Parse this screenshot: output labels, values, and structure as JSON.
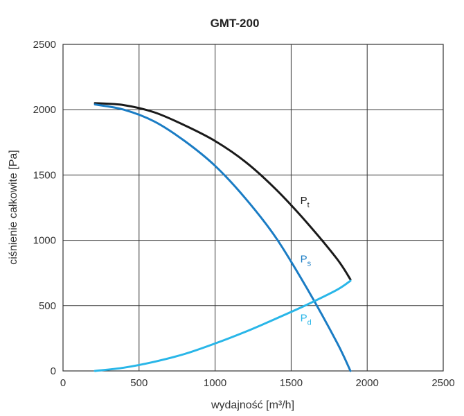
{
  "chart_data": {
    "type": "line",
    "title": "GMT-200",
    "xlabel": "wydajność [m³/h]",
    "ylabel": "ciśnienie całkowite [Pa]",
    "xlim": [
      0,
      2500
    ],
    "ylim": [
      0,
      2500
    ],
    "x_ticks": [
      0,
      500,
      1000,
      1500,
      2000,
      2500
    ],
    "y_ticks": [
      0,
      500,
      1000,
      1500,
      2000,
      2500
    ],
    "grid": true,
    "series": [
      {
        "name": "Pt",
        "label_main": "P",
        "label_sub": "t",
        "label_at": [
          1560,
          1280
        ],
        "color": "#1a1a1a",
        "x": [
          210,
          400,
          600,
          800,
          1000,
          1200,
          1400,
          1600,
          1800,
          1890
        ],
        "y": [
          2050,
          2035,
          1980,
          1880,
          1760,
          1600,
          1390,
          1140,
          860,
          700
        ]
      },
      {
        "name": "Ps",
        "label_main": "P",
        "label_sub": "s",
        "label_at": [
          1560,
          830
        ],
        "color": "#1a7cc4",
        "x": [
          210,
          400,
          600,
          800,
          1000,
          1200,
          1400,
          1600,
          1800,
          1890
        ],
        "y": [
          2040,
          2000,
          1910,
          1760,
          1570,
          1320,
          1020,
          640,
          220,
          0
        ]
      },
      {
        "name": "Pd",
        "label_main": "P",
        "label_sub": "d",
        "label_at": [
          1560,
          380
        ],
        "color": "#29b6e8",
        "x": [
          210,
          400,
          600,
          800,
          1000,
          1200,
          1400,
          1600,
          1800,
          1890
        ],
        "y": [
          0,
          25,
          70,
          130,
          210,
          300,
          400,
          505,
          620,
          690
        ]
      }
    ]
  }
}
